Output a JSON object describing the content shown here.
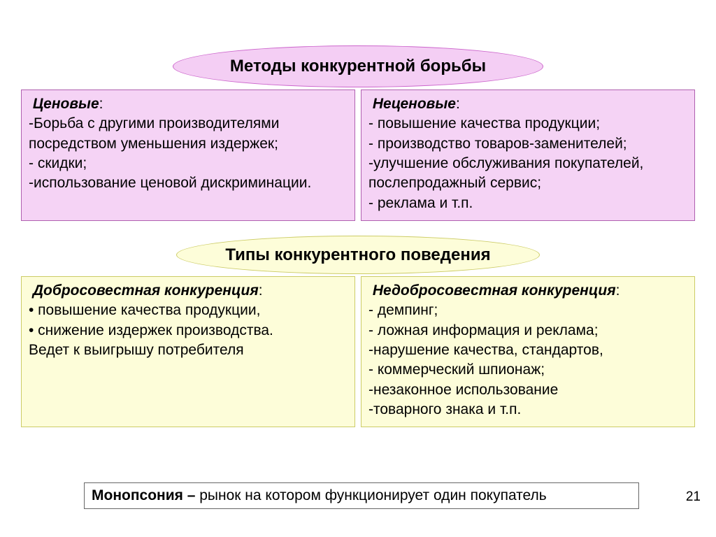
{
  "colors": {
    "pink_fill": "#f5d3f5",
    "pink_border": "#b060b0",
    "pink_oval_fill": "#f4cef4",
    "pink_oval_border": "#cc66cc",
    "yellow_fill": "#fdfdd9",
    "yellow_border": "#cccc66",
    "footer_border": "#666666",
    "background": "#ffffff",
    "text": "#000000"
  },
  "typography": {
    "header_fontsize": 24,
    "body_fontsize": 21,
    "page_num_fontsize": 19,
    "font_family": "Arial"
  },
  "section1": {
    "header": "Методы конкурентной борьбы",
    "left": {
      "title": "Ценовые",
      "items": "-Борьба с другими производителями посредством уменьшения издержек;\n- скидки;\n-использование ценовой дискриминации."
    },
    "right": {
      "title": "Неценовые",
      "items": "- повышение качества продукции;\n- производство товаров-заменителей;\n-улучшение обслуживания покупателей, послепродажный сервис;\n- реклама и т.п."
    }
  },
  "section2": {
    "header": "Типы конкурентного поведения",
    "left": {
      "title": "Добросовестная конкуренция",
      "items": "• повышение качества продукции,\n• снижение издержек производства.\nВедет к выигрышу потребителя"
    },
    "right": {
      "title": "Недобросовестная конкуренция",
      "items": "- демпинг;\n- ложная информация и реклама;\n-нарушение качества, стандартов,\n- коммерческий шпионаж;\n-незаконное использование\n-товарного знака и т.п."
    }
  },
  "footer": {
    "term": "Монопсония – ",
    "text": "рынок на котором функционирует один покупатель"
  },
  "page_number": "21"
}
